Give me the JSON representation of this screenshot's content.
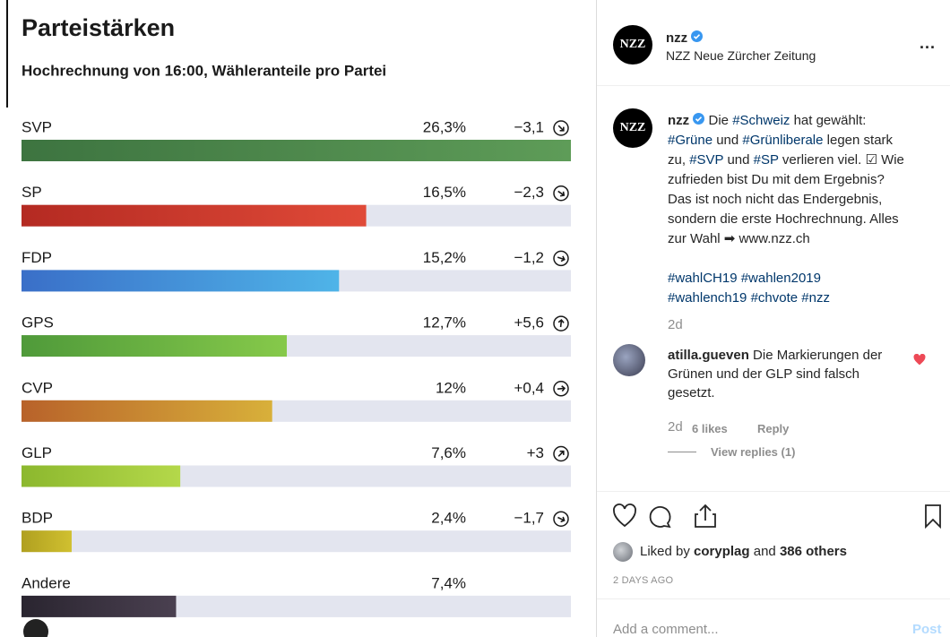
{
  "chart_data": {
    "type": "bar",
    "orientation": "horizontal",
    "title": "Parteistärken",
    "subtitle": "Hochrechnung von 16:00, Wähleranteile pro Partei",
    "categories": [
      "SVP",
      "SP",
      "FDP",
      "GPS",
      "CVP",
      "GLP",
      "BDP",
      "Andere"
    ],
    "values": [
      26.3,
      16.5,
      15.2,
      12.7,
      12,
      7.6,
      2.4,
      7.4
    ],
    "value_labels": [
      "26,3%",
      "16,5%",
      "15,2%",
      "12,7%",
      "12%",
      "7,6%",
      "2,4%",
      "7,4%"
    ],
    "colors": [
      [
        "#3d7440",
        "#5e9c58"
      ],
      [
        "#b42a22",
        "#e04a38"
      ],
      [
        "#3a6fc8",
        "#4fb4e8"
      ],
      [
        "#4f9a3a",
        "#86c94a"
      ],
      [
        "#b8622a",
        "#d8b03a"
      ],
      [
        "#8cb82e",
        "#b4d84a"
      ],
      [
        "#b0a020",
        "#d0c030"
      ],
      [
        "#2a2530",
        "#4a4050"
      ]
    ],
    "track_color": "#e3e5ef",
    "xlim": [
      0,
      26.3
    ],
    "changes": {
      "values": [
        -3.1,
        -2.3,
        -1.2,
        5.6,
        0.4,
        3,
        -1.7,
        null
      ],
      "value_labels": [
        "−3,1",
        "−2,3",
        "−1,2",
        "+5,6",
        "+0,4",
        "+3",
        "−1,7",
        null
      ]
    }
  },
  "post": {
    "header": {
      "username": "nzz",
      "full_name": "NZZ Neue Zürcher Zeitung",
      "avatar": "NZZ",
      "more": "..."
    },
    "caption": {
      "username": "nzz",
      "pieces": [
        "Die ",
        "#Schweiz",
        " hat gewählt:",
        "#Grüne",
        " und ",
        "#Grünliberale",
        " legen stark",
        "zu, ",
        "#SVP",
        " und ",
        "#SP",
        " verlieren viel. ☑ Wie",
        "zufrieden bist Du mit dem Ergebnis?",
        "Das ist noch nicht das Endergebnis,",
        "sondern die erste Hochrechnung. Alles",
        "zur Wahl ➡ www.nzz.ch",
        "#wahlCH19",
        "#wahlen2019",
        "#wahlench19",
        "#chvote",
        "#nzz"
      ],
      "time": "2d"
    },
    "comment": {
      "username": "atilla.gueven",
      "text": "Die Markierungen der Grünen und der GLP sind falsch gesetzt.",
      "time": "2d",
      "likes": "6 likes",
      "reply": "Reply",
      "view_replies": "View replies (1)"
    },
    "likes": {
      "prefix": "Liked by",
      "user": "coryplag",
      "middle": "and",
      "others": "386 others"
    },
    "date": "2 DAYS AGO",
    "add_comment": {
      "placeholder": "Add a comment...",
      "button": "Post"
    }
  }
}
